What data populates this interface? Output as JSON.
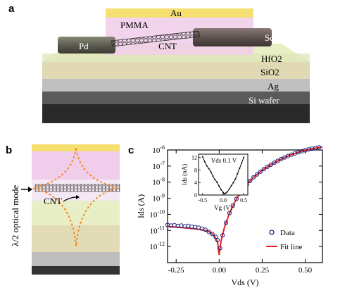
{
  "panels": {
    "a": {
      "label": "a",
      "layers": [
        "Au",
        "PMMA",
        "Pd",
        "CNT",
        "Sc",
        "HfO2",
        "SiO2",
        "Ag",
        "Si wafer"
      ]
    },
    "b": {
      "label": "b",
      "mode_label": "λ/2 optical mode",
      "cnt_label": "CNT"
    },
    "c": {
      "label": "c"
    }
  },
  "colors": {
    "gold": "#f2dc6c",
    "pmma": "#ecc8ee",
    "hfo2": "#e7efc4",
    "sio2": "#e2dcb6",
    "ag": "#c4c4c4",
    "si": "#3a3a3a",
    "mode_curve": "#f08a24",
    "data_marker": "#1a237e",
    "fit_line": "#e52020"
  },
  "chart_data": [
    {
      "type": "scatter",
      "title": "",
      "xlabel": "Vds (V)",
      "ylabel": "Ids (A)",
      "xlim": [
        -0.3,
        0.6
      ],
      "ylim_log10": [
        -13,
        -6
      ],
      "yscale": "log",
      "xticks": [
        "-0.25",
        "0.00",
        "0.25",
        "0.50"
      ],
      "xtick_values": [
        -0.25,
        0,
        0.25,
        0.5
      ],
      "yticks": [
        "10-12",
        "10-11",
        "10-10",
        "10-9",
        "10-8",
        "10-7",
        "10-6"
      ],
      "ytick_values": [
        -12,
        -11,
        -10,
        -9,
        -8,
        -7,
        -6
      ],
      "legend_position": "bottom-right",
      "series": [
        {
          "name": "Data",
          "style": "open-circle",
          "points": [
            [
              -0.3,
              2.2e-11
            ],
            [
              -0.28,
              2e-11
            ],
            [
              -0.26,
              2.1e-11
            ],
            [
              -0.24,
              1.9e-11
            ],
            [
              -0.22,
              2e-11
            ],
            [
              -0.2,
              1.8e-11
            ],
            [
              -0.18,
              1.9e-11
            ],
            [
              -0.16,
              1.7e-11
            ],
            [
              -0.14,
              1.6e-11
            ],
            [
              -0.12,
              1.5e-11
            ],
            [
              -0.1,
              1.3e-11
            ],
            [
              -0.08,
              1.1e-11
            ],
            [
              -0.06,
              8e-12
            ],
            [
              -0.04,
              6e-12
            ],
            [
              -0.02,
              4e-12
            ],
            [
              -0.01,
              2.5e-12
            ],
            [
              0.005,
              8e-13
            ],
            [
              0.02,
              5e-12
            ],
            [
              0.04,
              3e-11
            ],
            [
              0.06,
              1.2e-10
            ],
            [
              0.08,
              3.5e-10
            ],
            [
              0.1,
              9e-10
            ],
            [
              0.12,
              2e-09
            ],
            [
              0.14,
              4e-09
            ],
            [
              0.16,
              7e-09
            ],
            [
              0.18,
              1.2e-08
            ],
            [
              0.2,
              2e-08
            ],
            [
              0.22,
              3e-08
            ],
            [
              0.24,
              4.5e-08
            ],
            [
              0.26,
              6.5e-08
            ],
            [
              0.28,
              9e-08
            ],
            [
              0.3,
              1.2e-07
            ],
            [
              0.32,
              1.6e-07
            ],
            [
              0.34,
              2.1e-07
            ],
            [
              0.36,
              2.7e-07
            ],
            [
              0.38,
              3.4e-07
            ],
            [
              0.4,
              4.2e-07
            ],
            [
              0.42,
              5.1e-07
            ],
            [
              0.44,
              6.1e-07
            ],
            [
              0.46,
              7.2e-07
            ],
            [
              0.48,
              8.3e-07
            ],
            [
              0.5,
              9.5e-07
            ],
            [
              0.52,
              1.08e-06
            ],
            [
              0.54,
              1.2e-06
            ],
            [
              0.56,
              1.32e-06
            ],
            [
              0.58,
              1.45e-06
            ]
          ]
        },
        {
          "name": "Fit line",
          "style": "line",
          "points": [
            [
              -0.3,
              1.8e-11
            ],
            [
              -0.25,
              1.6e-11
            ],
            [
              -0.2,
              1.45e-11
            ],
            [
              -0.15,
              1.3e-11
            ],
            [
              -0.1,
              1.1e-11
            ],
            [
              -0.06,
              8.5e-12
            ],
            [
              -0.03,
              5e-12
            ],
            [
              -0.01,
              2e-12
            ],
            [
              0.0,
              3e-13
            ],
            [
              0.01,
              2e-12
            ],
            [
              0.03,
              1.5e-11
            ],
            [
              0.06,
              1.2e-10
            ],
            [
              0.1,
              9e-10
            ],
            [
              0.15,
              5.5e-09
            ],
            [
              0.2,
              2e-08
            ],
            [
              0.25,
              5.5e-08
            ],
            [
              0.3,
              1.2e-07
            ],
            [
              0.35,
              2.4e-07
            ],
            [
              0.4,
              4.2e-07
            ],
            [
              0.45,
              6.6e-07
            ],
            [
              0.5,
              9.5e-07
            ],
            [
              0.55,
              1.25e-06
            ],
            [
              0.6,
              1.55e-06
            ]
          ]
        }
      ]
    },
    {
      "type": "line",
      "title": "Vds 0.1 V",
      "xlabel": "Vg (V)",
      "ylabel": "Ids (nA)",
      "xlim": [
        -0.6,
        0.6
      ],
      "ylim": [
        0,
        13
      ],
      "xticks": [
        "-0.5",
        "0.0",
        "0.5"
      ],
      "xtick_values": [
        -0.5,
        0,
        0.5
      ],
      "yticks": [
        "0",
        "4",
        "8",
        "12"
      ],
      "ytick_values": [
        0,
        4,
        8,
        12
      ],
      "series": [
        {
          "name": "",
          "points": [
            [
              -0.5,
              12.2
            ],
            [
              -0.45,
              10.6
            ],
            [
              -0.4,
              9.3
            ],
            [
              -0.35,
              8.4
            ],
            [
              -0.3,
              7.4
            ],
            [
              -0.25,
              6.0
            ],
            [
              -0.2,
              4.9
            ],
            [
              -0.15,
              4.1
            ],
            [
              -0.1,
              2.8
            ],
            [
              -0.05,
              1.7
            ],
            [
              0.0,
              0.8
            ],
            [
              0.03,
              0.4
            ],
            [
              0.06,
              0.6
            ],
            [
              0.1,
              1.0
            ],
            [
              0.15,
              1.9
            ],
            [
              0.2,
              3.0
            ],
            [
              0.25,
              4.0
            ],
            [
              0.3,
              5.1
            ],
            [
              0.35,
              6.8
            ],
            [
              0.4,
              8.5
            ],
            [
              0.45,
              10.2
            ],
            [
              0.5,
              12.0
            ]
          ]
        }
      ]
    }
  ]
}
